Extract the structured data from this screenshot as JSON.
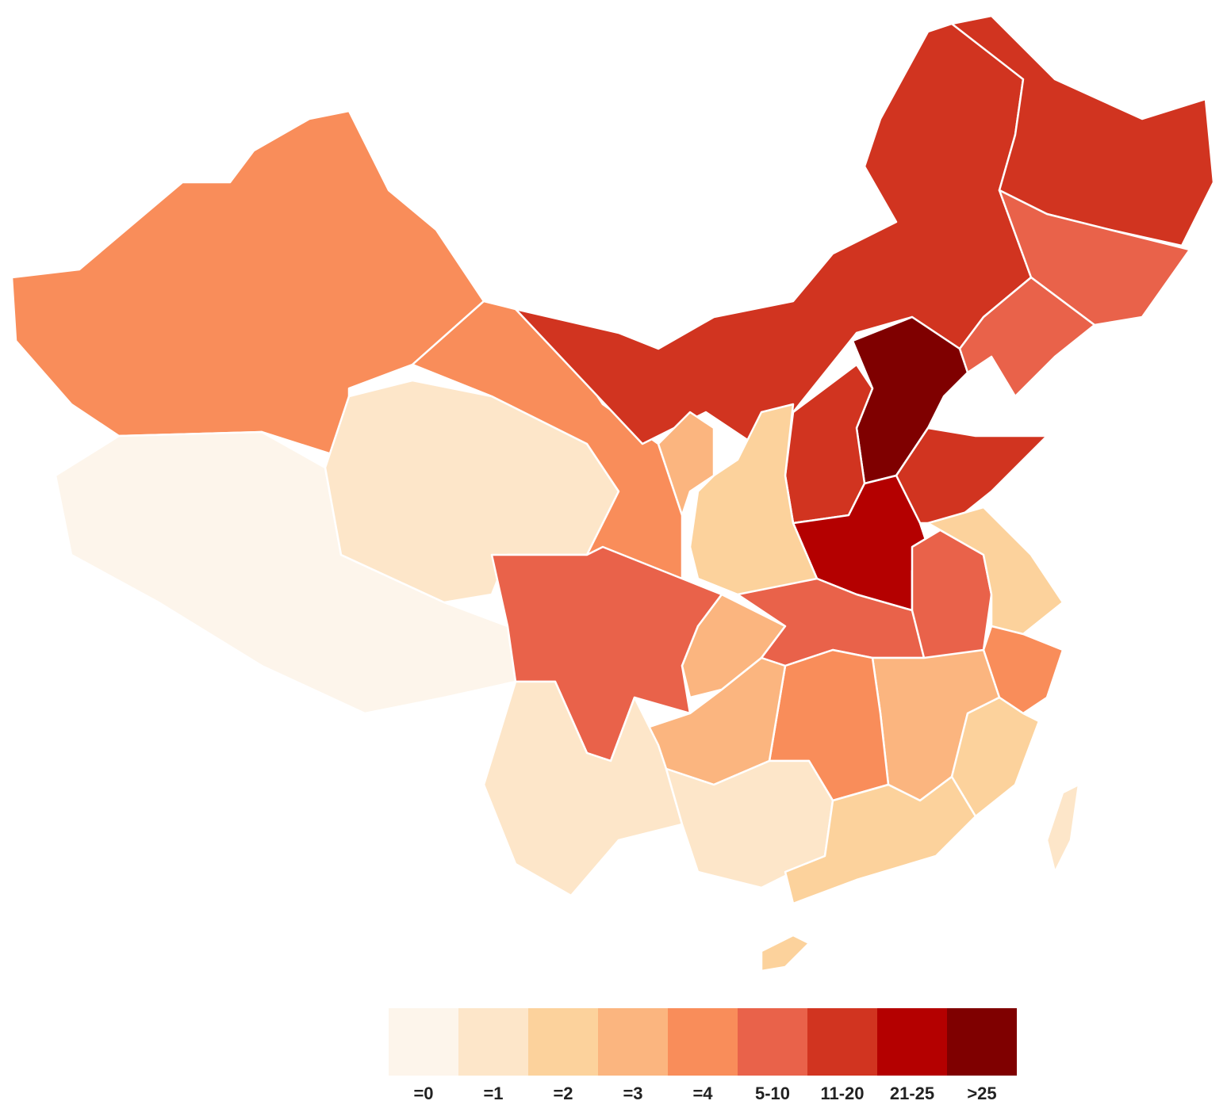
{
  "map": {
    "legend": [
      {
        "label": "=0",
        "color": "#fdf5eb"
      },
      {
        "label": "=1",
        "color": "#fde6c9"
      },
      {
        "label": "=2",
        "color": "#fcd29c"
      },
      {
        "label": "=3",
        "color": "#fbb57f"
      },
      {
        "label": "=4",
        "color": "#f98d5a"
      },
      {
        "label": "5-10",
        "color": "#e9624a"
      },
      {
        "label": "11-20",
        "color": "#d13420"
      },
      {
        "label": "21-25",
        "color": "#b40000"
      },
      {
        "label": ">25",
        "color": "#7f0000"
      }
    ],
    "region_classes": [
      4,
      0,
      1,
      4,
      6,
      6,
      5,
      5,
      3,
      8,
      6,
      6,
      7,
      3,
      2,
      5,
      3,
      5,
      5,
      2,
      4,
      3,
      2,
      4,
      3,
      1,
      1,
      2,
      2,
      1
    ]
  }
}
